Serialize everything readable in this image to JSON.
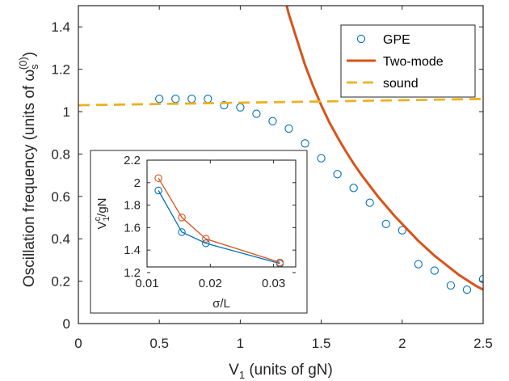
{
  "chart_data": [
    {
      "type": "scatter",
      "xlabel": "V₁ (units of gN)",
      "ylabel": "Oscillation frequency (units of ωs⁽⁰⁾)",
      "ylabel_parts": {
        "main": "Oscillation frequency (units of ω",
        "sub": "s",
        "sup": "(0)",
        "close": ")"
      },
      "xlabel_parts": {
        "main": "V",
        "sub": "1",
        "rest": " (units of gN)"
      },
      "xlim": [
        0,
        2.5
      ],
      "ylim": [
        0,
        1.5
      ],
      "xticks": [
        0,
        0.5,
        1,
        1.5,
        2,
        2.5
      ],
      "xtick_labels": [
        "0",
        "0.5",
        "1",
        "1.5",
        "2",
        "2.5"
      ],
      "yticks": [
        0,
        0.2,
        0.4,
        0.6,
        0.8,
        1,
        1.2,
        1.4
      ],
      "ytick_labels": [
        "0",
        "0.2",
        "0.4",
        "0.6",
        "0.8",
        "1",
        "1.2",
        "1.4"
      ],
      "legend_position": "top-right",
      "series": [
        {
          "name": "GPE",
          "style": "markers",
          "color": "#0072BD",
          "x": [
            0.5,
            0.6,
            0.7,
            0.8,
            0.9,
            1.0,
            1.1,
            1.2,
            1.3,
            1.4,
            1.5,
            1.6,
            1.7,
            1.8,
            1.9,
            2.0,
            2.1,
            2.2,
            2.3,
            2.4,
            2.5
          ],
          "y": [
            1.06,
            1.06,
            1.06,
            1.06,
            1.03,
            1.02,
            0.99,
            0.955,
            0.92,
            0.85,
            0.78,
            0.705,
            0.64,
            0.57,
            0.47,
            0.44,
            0.28,
            0.25,
            0.18,
            0.16,
            0.21
          ]
        },
        {
          "name": "Two-mode",
          "style": "solid-line",
          "color": "#D95319",
          "x": [
            1.28,
            1.3,
            1.35,
            1.4,
            1.45,
            1.5,
            1.55,
            1.6,
            1.65,
            1.7,
            1.75,
            1.8,
            1.85,
            1.9,
            1.95,
            2.0,
            2.05,
            2.1,
            2.15,
            2.2,
            2.25,
            2.3,
            2.35,
            2.4,
            2.45,
            2.5
          ],
          "y": [
            1.52,
            1.46,
            1.34,
            1.22,
            1.12,
            1.03,
            0.95,
            0.88,
            0.815,
            0.755,
            0.7,
            0.65,
            0.6,
            0.555,
            0.51,
            0.47,
            0.43,
            0.39,
            0.355,
            0.32,
            0.29,
            0.26,
            0.23,
            0.205,
            0.18,
            0.16
          ]
        },
        {
          "name": "sound",
          "style": "dashed-line",
          "color": "#EDB120",
          "x": [
            0,
            2.5
          ],
          "y": [
            1.03,
            1.06
          ]
        }
      ]
    },
    {
      "type": "line",
      "position": "inset",
      "xlabel": "σ/L",
      "ylabel": "V1c/gN",
      "ylabel_parts": {
        "main": "V",
        "sub": "1",
        "sup": "c",
        "rest": "/gN"
      },
      "xlim": [
        0.01,
        0.0335
      ],
      "ylim": [
        1.25,
        2.2
      ],
      "xticks": [
        0.01,
        0.02,
        0.03
      ],
      "xtick_labels": [
        "0.01",
        "0.02",
        "0.03"
      ],
      "yticks": [
        1.2,
        1.4,
        1.6,
        1.8,
        2.0,
        2.2
      ],
      "ytick_labels": [
        "1.2",
        "1.4",
        "1.6",
        "1.8",
        "2",
        "2.2"
      ],
      "series": [
        {
          "color": "#0072BD",
          "x": [
            0.0118,
            0.0155,
            0.0193,
            0.031
          ],
          "y": [
            1.93,
            1.56,
            1.46,
            1.28
          ]
        },
        {
          "color": "#D95319",
          "x": [
            0.0118,
            0.0155,
            0.0193,
            0.031
          ],
          "y": [
            2.04,
            1.69,
            1.5,
            1.29
          ]
        }
      ]
    }
  ]
}
